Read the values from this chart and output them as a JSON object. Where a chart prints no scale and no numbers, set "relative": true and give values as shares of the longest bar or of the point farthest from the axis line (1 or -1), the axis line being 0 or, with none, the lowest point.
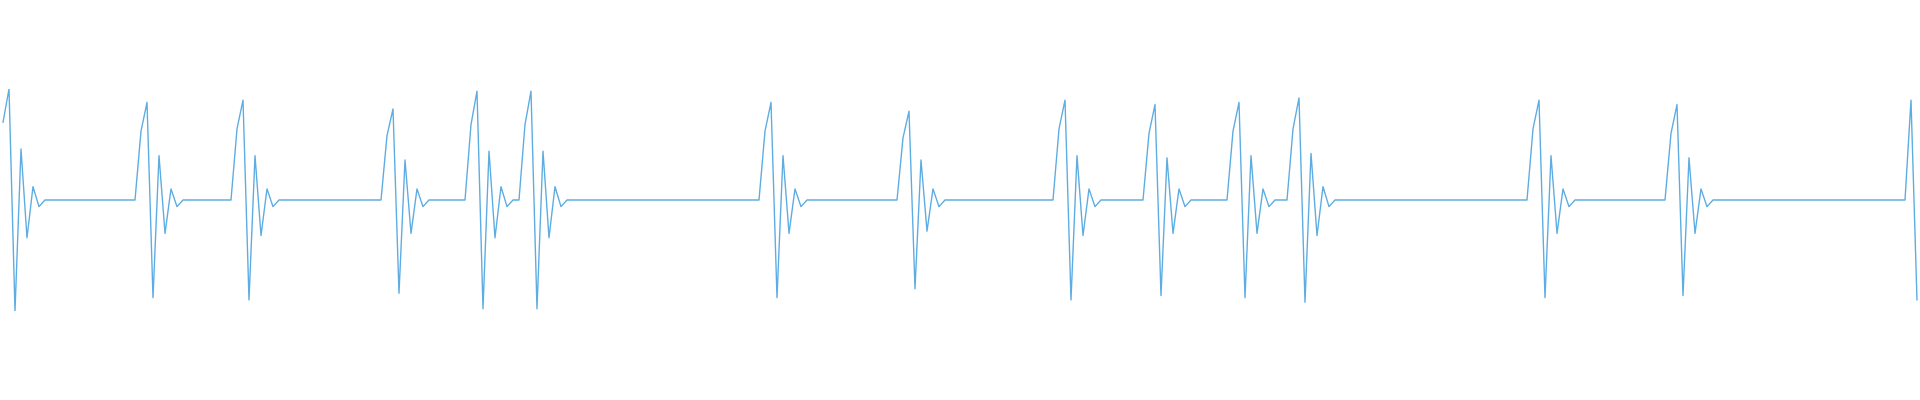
{
  "chart_data": {
    "type": "line",
    "relative": true,
    "line_style": "solid",
    "categories": [
      null,
      null,
      null,
      null,
      null,
      null,
      null,
      null,
      null,
      null,
      null,
      null,
      null,
      null,
      null,
      null,
      null,
      null,
      null,
      null,
      null,
      null,
      null,
      null,
      null,
      null,
      null,
      null,
      null,
      null,
      null,
      null,
      null,
      null,
      null,
      null,
      null,
      null,
      null,
      null,
      null,
      null,
      null,
      null,
      null,
      null,
      null,
      null,
      null,
      null,
      null,
      null,
      null,
      null,
      null,
      null,
      null,
      null,
      null,
      null,
      null,
      null,
      null,
      null,
      null,
      null,
      null,
      null,
      null,
      null,
      null,
      null,
      null,
      null,
      null,
      null,
      null,
      null,
      null,
      null,
      null,
      null,
      null,
      null,
      null,
      null,
      null,
      null,
      null,
      null,
      null,
      null,
      null,
      null,
      null,
      null,
      null,
      null,
      null,
      null,
      null,
      null,
      null,
      null,
      null,
      null,
      null,
      null,
      null,
      null,
      null,
      null,
      null,
      null,
      null,
      null,
      null,
      null,
      null,
      null,
      null,
      null,
      null,
      null,
      null,
      null,
      null,
      null,
      null,
      null,
      null,
      null,
      null,
      null,
      null,
      null,
      null,
      null,
      null,
      null,
      null,
      null,
      null,
      null,
      null,
      null,
      null,
      null,
      null,
      null,
      null,
      null,
      null,
      null,
      null,
      null,
      null,
      null,
      null,
      null,
      null,
      null,
      null,
      null,
      null,
      null,
      null,
      null,
      null,
      null,
      null,
      null,
      null,
      null,
      null,
      null,
      null,
      null,
      null,
      null,
      null,
      null,
      null,
      null,
      null,
      null,
      null,
      null,
      null,
      null,
      null,
      null,
      null,
      null,
      null,
      null,
      null,
      null,
      null,
      null,
      null,
      null,
      null,
      null,
      null,
      null,
      null,
      null,
      null,
      null,
      null,
      null,
      null,
      null,
      null,
      null,
      null,
      null,
      null,
      null,
      null,
      null,
      null,
      null,
      null,
      null,
      null,
      null,
      null,
      null,
      null,
      null,
      null,
      null,
      null,
      null,
      null,
      null,
      null,
      null,
      null,
      null,
      null,
      null,
      null,
      null,
      null,
      null,
      null,
      null,
      null,
      null,
      null,
      null,
      null,
      null,
      null,
      null,
      null,
      null,
      null,
      null,
      null,
      null,
      null,
      null,
      null,
      null,
      null,
      null,
      null,
      null,
      null,
      null,
      null,
      null,
      null,
      null,
      null,
      null,
      null,
      null,
      null,
      null,
      null,
      null,
      null,
      null,
      null,
      null,
      null,
      null,
      null,
      null,
      null,
      null,
      null,
      null,
      null,
      null,
      null,
      null,
      null,
      null,
      null,
      null,
      null,
      null,
      null,
      null,
      null,
      null,
      null,
      null,
      null,
      null,
      null,
      null,
      null,
      null
    ],
    "series": [
      {
        "color": "#5dade2",
        "values": [
          0.85,
          1.0,
          0.0,
          0.73,
          0.33,
          0.56,
          0.47,
          0.5,
          0.5,
          0.5,
          0.5,
          0.5,
          0.5,
          0.5,
          0.5,
          0.5,
          0.5,
          0.5,
          0.5,
          0.5,
          0.5,
          0.5,
          0.5,
          0.81,
          0.94,
          0.06,
          0.7,
          0.35,
          0.55,
          0.47,
          0.5,
          0.5,
          0.5,
          0.5,
          0.5,
          0.5,
          0.5,
          0.5,
          0.5,
          0.82,
          0.95,
          0.05,
          0.7,
          0.34,
          0.55,
          0.47,
          0.5,
          0.5,
          0.5,
          0.5,
          0.5,
          0.5,
          0.5,
          0.5,
          0.5,
          0.5,
          0.5,
          0.5,
          0.5,
          0.5,
          0.5,
          0.5,
          0.5,
          0.5,
          0.79,
          0.91,
          0.08,
          0.68,
          0.35,
          0.55,
          0.47,
          0.5,
          0.5,
          0.5,
          0.5,
          0.5,
          0.5,
          0.5,
          0.84,
          0.99,
          0.01,
          0.72,
          0.33,
          0.56,
          0.47,
          0.5,
          0.5,
          0.84,
          0.99,
          0.01,
          0.72,
          0.33,
          0.56,
          0.47,
          0.5,
          0.5,
          0.5,
          0.5,
          0.5,
          0.5,
          0.5,
          0.5,
          0.5,
          0.5,
          0.5,
          0.5,
          0.5,
          0.5,
          0.5,
          0.5,
          0.5,
          0.5,
          0.5,
          0.5,
          0.5,
          0.5,
          0.5,
          0.5,
          0.5,
          0.5,
          0.5,
          0.5,
          0.5,
          0.5,
          0.5,
          0.5,
          0.5,
          0.81,
          0.94,
          0.06,
          0.7,
          0.35,
          0.55,
          0.47,
          0.5,
          0.5,
          0.5,
          0.5,
          0.5,
          0.5,
          0.5,
          0.5,
          0.5,
          0.5,
          0.5,
          0.5,
          0.5,
          0.5,
          0.5,
          0.5,
          0.78,
          0.9,
          0.1,
          0.68,
          0.36,
          0.55,
          0.47,
          0.5,
          0.5,
          0.5,
          0.5,
          0.5,
          0.5,
          0.5,
          0.5,
          0.5,
          0.5,
          0.5,
          0.5,
          0.5,
          0.5,
          0.5,
          0.5,
          0.5,
          0.5,
          0.5,
          0.82,
          0.95,
          0.05,
          0.7,
          0.34,
          0.55,
          0.47,
          0.5,
          0.5,
          0.5,
          0.5,
          0.5,
          0.5,
          0.5,
          0.5,
          0.8,
          0.93,
          0.07,
          0.69,
          0.35,
          0.55,
          0.47,
          0.5,
          0.5,
          0.5,
          0.5,
          0.5,
          0.5,
          0.5,
          0.81,
          0.94,
          0.06,
          0.7,
          0.35,
          0.55,
          0.47,
          0.5,
          0.5,
          0.5,
          0.82,
          0.96,
          0.04,
          0.71,
          0.34,
          0.56,
          0.47,
          0.5,
          0.5,
          0.5,
          0.5,
          0.5,
          0.5,
          0.5,
          0.5,
          0.5,
          0.5,
          0.5,
          0.5,
          0.5,
          0.5,
          0.5,
          0.5,
          0.5,
          0.5,
          0.5,
          0.5,
          0.5,
          0.5,
          0.5,
          0.5,
          0.5,
          0.5,
          0.5,
          0.5,
          0.5,
          0.5,
          0.5,
          0.5,
          0.5,
          0.82,
          0.95,
          0.06,
          0.7,
          0.35,
          0.55,
          0.47,
          0.5,
          0.5,
          0.5,
          0.5,
          0.5,
          0.5,
          0.5,
          0.5,
          0.5,
          0.5,
          0.5,
          0.5,
          0.5,
          0.5,
          0.5,
          0.5,
          0.8,
          0.93,
          0.07,
          0.69,
          0.35,
          0.55,
          0.47,
          0.5,
          0.5,
          0.5,
          0.5,
          0.5,
          0.5,
          0.5,
          0.5,
          0.5,
          0.5,
          0.5,
          0.5,
          0.5,
          0.5,
          0.5,
          0.5,
          0.5,
          0.5,
          0.5,
          0.5,
          0.5,
          0.5,
          0.5,
          0.5,
          0.5,
          0.5,
          0.5,
          0.5,
          0.5,
          0.5,
          0.5,
          0.5,
          0.5,
          0.95,
          0.05
        ]
      }
    ]
  }
}
